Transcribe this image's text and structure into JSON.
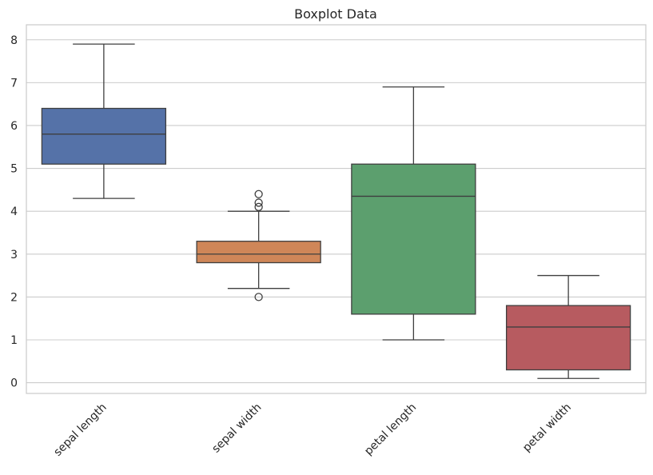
{
  "chart_data": {
    "type": "boxplot",
    "title": "Boxplot Data",
    "xlabel": "",
    "ylabel": "",
    "ylim": [
      -0.25,
      8.35
    ],
    "yticks": [
      "0",
      "1",
      "2",
      "3",
      "4",
      "5",
      "6",
      "7",
      "8"
    ],
    "grid": true,
    "categories": [
      "sepal length",
      "sepal width",
      "petal length",
      "petal width"
    ],
    "boxes": [
      {
        "category": "sepal length",
        "min": 4.3,
        "q1": 5.1,
        "median": 5.8,
        "q3": 6.4,
        "max": 7.9,
        "outliers": [],
        "color": "#5572a8"
      },
      {
        "category": "sepal width",
        "min": 2.2,
        "q1": 2.8,
        "median": 3.0,
        "q3": 3.3,
        "max": 4.0,
        "outliers": [
          4.4,
          4.2,
          4.1,
          2.0
        ],
        "color": "#cf8658"
      },
      {
        "category": "petal length",
        "min": 1.0,
        "q1": 1.6,
        "median": 4.35,
        "q3": 5.1,
        "max": 6.9,
        "outliers": [],
        "color": "#5c9f6e"
      },
      {
        "category": "petal width",
        "min": 0.1,
        "q1": 0.3,
        "median": 1.3,
        "q3": 1.8,
        "max": 2.5,
        "outliers": [],
        "color": "#b75b60"
      }
    ]
  }
}
